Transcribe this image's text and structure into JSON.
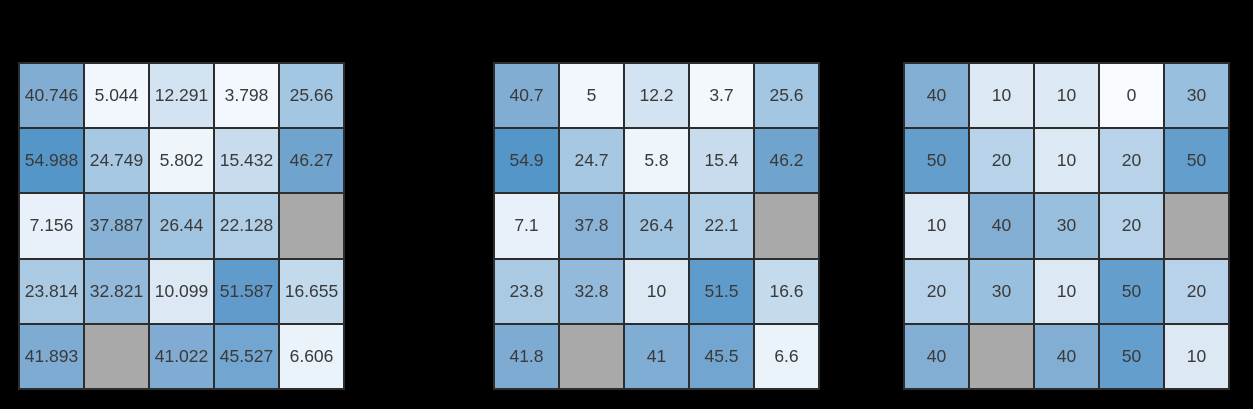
{
  "page": {
    "background_color": "#000000"
  },
  "heatmap_style": {
    "grid_line_color": "#2d2d2d",
    "cell_text_color": "#3a3a3a",
    "missing_value_color": "#a9a9a9",
    "colormap": "Blues",
    "colormap_stops": [
      [
        0,
        "#f7fbff"
      ],
      [
        5,
        "#f1f7fc"
      ],
      [
        12.3,
        "#d3e3f2"
      ],
      [
        25.7,
        "#a3c6e2"
      ],
      [
        40.7,
        "#81add3"
      ],
      [
        55,
        "#5596c8"
      ]
    ]
  },
  "chart_data": [
    {
      "type": "heatmap",
      "name": "heatmap-precision-3-decimals",
      "rows": 5,
      "cols": 5,
      "grid": true,
      "values": [
        [
          40.746,
          5.044,
          12.291,
          3.798,
          25.66
        ],
        [
          54.988,
          24.749,
          5.802,
          15.432,
          46.27
        ],
        [
          7.156,
          37.887,
          26.44,
          22.128,
          null
        ],
        [
          23.814,
          32.821,
          10.099,
          51.587,
          16.655
        ],
        [
          41.893,
          null,
          41.022,
          45.527,
          6.606
        ]
      ],
      "labels": [
        [
          "40.746",
          "5.044",
          "12.291",
          "3.798",
          "25.66"
        ],
        [
          "54.988",
          "24.749",
          "5.802",
          "15.432",
          "46.27"
        ],
        [
          "7.156",
          "37.887",
          "26.44",
          "22.128",
          ""
        ],
        [
          "23.814",
          "32.821",
          "10.099",
          "51.587",
          "16.655"
        ],
        [
          "41.893",
          "",
          "41.022",
          "45.527",
          "6.606"
        ]
      ]
    },
    {
      "type": "heatmap",
      "name": "heatmap-precision-1-decimal",
      "rows": 5,
      "cols": 5,
      "grid": true,
      "values": [
        [
          40.7,
          5,
          12.2,
          3.7,
          25.6
        ],
        [
          54.9,
          24.7,
          5.8,
          15.4,
          46.2
        ],
        [
          7.1,
          37.8,
          26.4,
          22.1,
          null
        ],
        [
          23.8,
          32.8,
          10,
          51.5,
          16.6
        ],
        [
          41.8,
          null,
          41,
          45.5,
          6.6
        ]
      ],
      "labels": [
        [
          "40.7",
          "5",
          "12.2",
          "3.7",
          "25.6"
        ],
        [
          "54.9",
          "24.7",
          "5.8",
          "15.4",
          "46.2"
        ],
        [
          "7.1",
          "37.8",
          "26.4",
          "22.1",
          ""
        ],
        [
          "23.8",
          "32.8",
          "10",
          "51.5",
          "16.6"
        ],
        [
          "41.8",
          "",
          "41",
          "45.5",
          "6.6"
        ]
      ]
    },
    {
      "type": "heatmap",
      "name": "heatmap-rounded-tens",
      "rows": 5,
      "cols": 5,
      "grid": true,
      "values": [
        [
          40,
          10,
          10,
          0,
          30
        ],
        [
          50,
          20,
          10,
          20,
          50
        ],
        [
          10,
          40,
          30,
          20,
          null
        ],
        [
          20,
          30,
          10,
          50,
          20
        ],
        [
          40,
          null,
          40,
          50,
          10
        ]
      ],
      "labels": [
        [
          "40",
          "10",
          "10",
          "0",
          "30"
        ],
        [
          "50",
          "20",
          "10",
          "20",
          "50"
        ],
        [
          "10",
          "40",
          "30",
          "20",
          ""
        ],
        [
          "20",
          "30",
          "10",
          "50",
          "20"
        ],
        [
          "40",
          "",
          "40",
          "50",
          "10"
        ]
      ]
    }
  ]
}
